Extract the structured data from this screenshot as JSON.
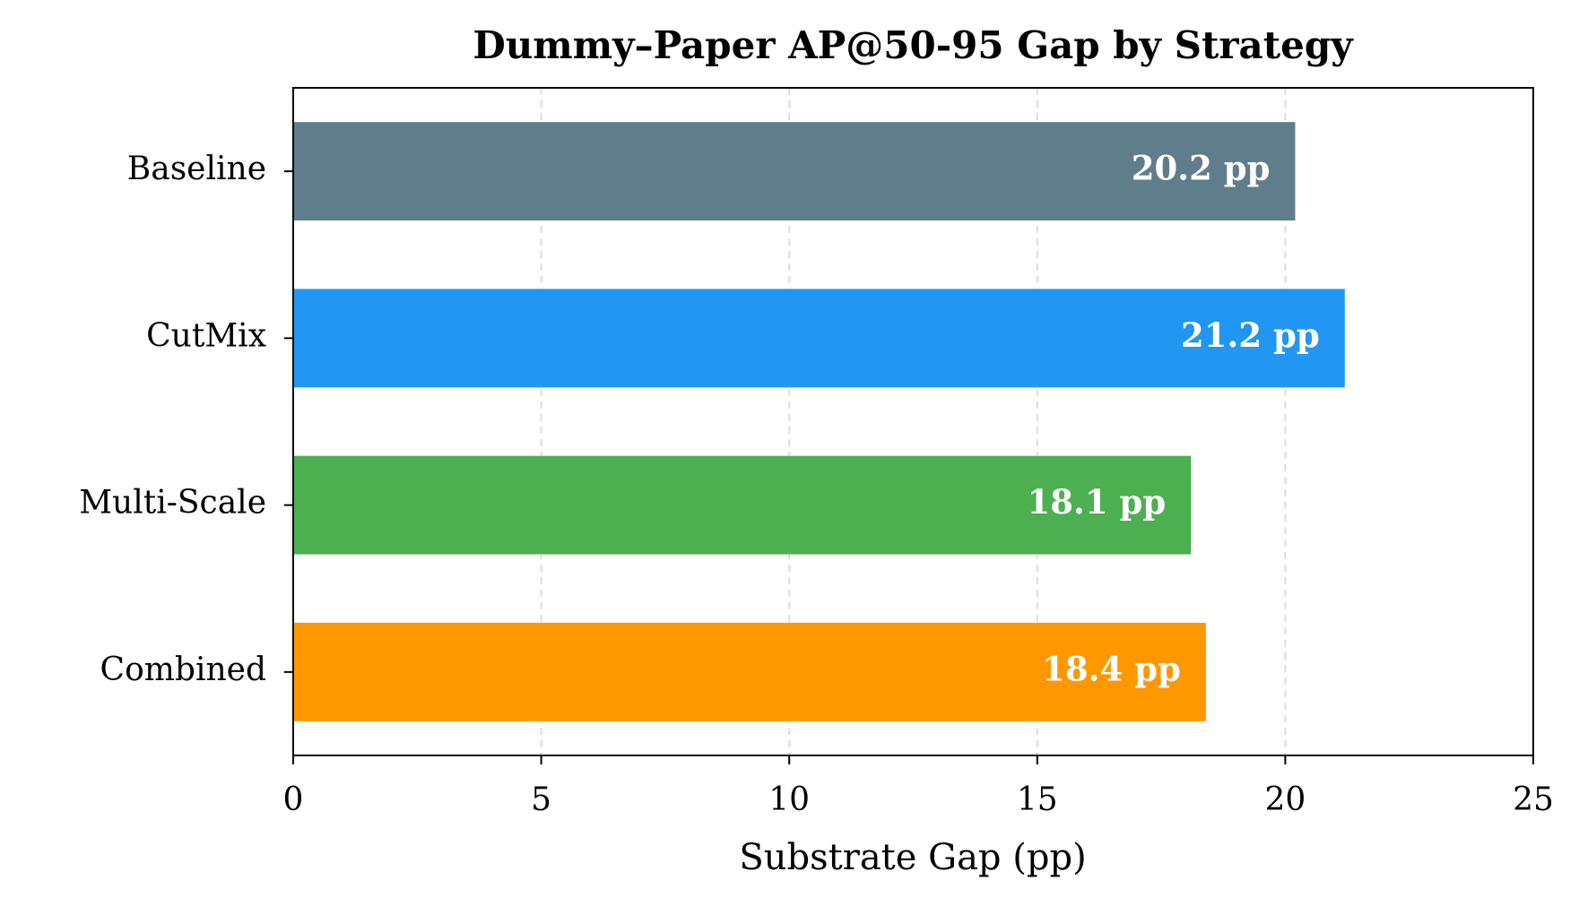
{
  "chart_data": {
    "type": "barh",
    "title": "Dummy–Paper AP@50-95 Gap by Strategy",
    "xlabel": "Substrate Gap (pp)",
    "categories": [
      "Baseline",
      "CutMix",
      "Multi-Scale",
      "Combined"
    ],
    "values": [
      20.2,
      21.2,
      18.1,
      18.4
    ],
    "value_labels": [
      "20.2 pp",
      "21.2 pp",
      "18.1 pp",
      "18.4 pp"
    ],
    "colors": [
      "#607d8b",
      "#2196f3",
      "#4caf50",
      "#ff9800"
    ],
    "xlim": [
      0,
      25
    ],
    "xticks": [
      0,
      5,
      10,
      15,
      20,
      25
    ],
    "grid": true
  }
}
